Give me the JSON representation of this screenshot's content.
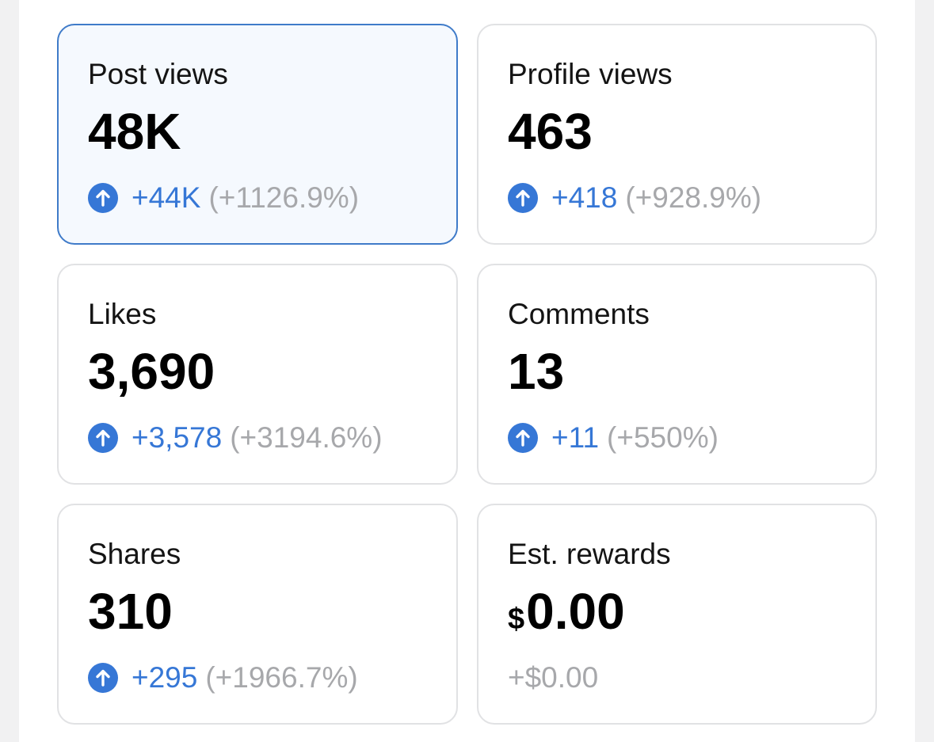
{
  "colors": {
    "accent": "#3677d6",
    "selected_border": "#3f7bc9",
    "selected_bg": "#f5f9fe",
    "muted": "#a7a8ab",
    "card_border": "#e1e2e4"
  },
  "metrics": [
    {
      "label": "Post views",
      "value": "48K",
      "delta": "+44K",
      "percent": "(+1126.9%)",
      "selected": true,
      "icon": "arrow-up-circle-icon"
    },
    {
      "label": "Profile views",
      "value": "463",
      "delta": "+418",
      "percent": "(+928.9%)",
      "selected": false,
      "icon": "arrow-up-circle-icon"
    },
    {
      "label": "Likes",
      "value": "3,690",
      "delta": "+3,578",
      "percent": "(+3194.6%)",
      "selected": false,
      "icon": "arrow-up-circle-icon"
    },
    {
      "label": "Comments",
      "value": "13",
      "delta": "+11",
      "percent": "(+550%)",
      "selected": false,
      "icon": "arrow-up-circle-icon"
    },
    {
      "label": "Shares",
      "value": "310",
      "delta": "+295",
      "percent": "(+1966.7%)",
      "selected": false,
      "icon": "arrow-up-circle-icon"
    },
    {
      "label": "Est. rewards",
      "currency": "$",
      "value": "0.00",
      "delta": "+$0.00",
      "selected": false
    }
  ]
}
